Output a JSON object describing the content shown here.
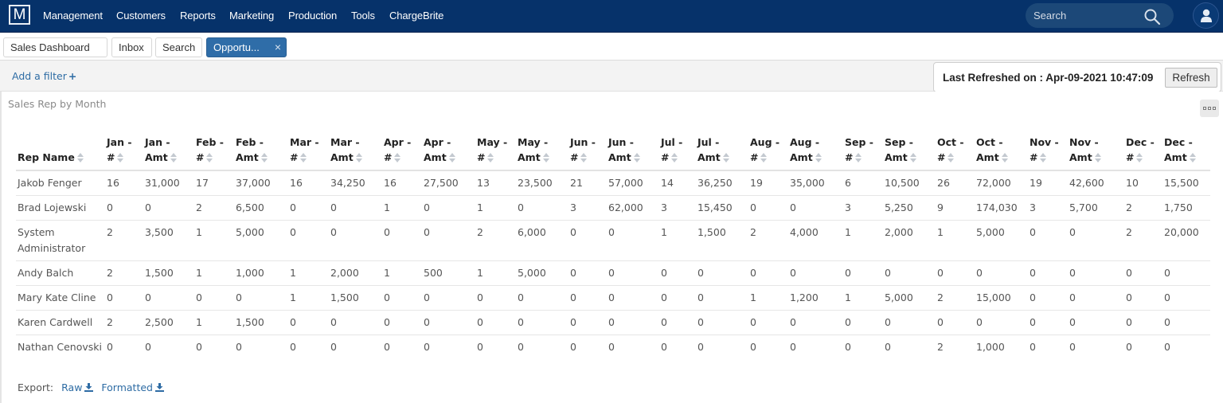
{
  "topnav": {
    "logo": "M",
    "items": [
      "Management",
      "Customers",
      "Reports",
      "Marketing",
      "Production",
      "Tools",
      "ChargeBrite"
    ],
    "search_placeholder": "Search"
  },
  "tabs": [
    {
      "label": "Sales Dashboard",
      "has_dropdown": true
    },
    {
      "label": "Inbox"
    },
    {
      "label": "Search"
    },
    {
      "label": "Opportu...",
      "active": true,
      "closable": true,
      "close_glyph": "×"
    }
  ],
  "filterbar": {
    "add_filter_label": "Add a filter",
    "add_filter_icon": "+",
    "last_refreshed_label": "Last Refreshed on : Apr-09-2021 10:47:09",
    "refresh_button": "Refresh"
  },
  "panel": {
    "title": "Sales Rep by Month",
    "table": {
      "columns": [
        {
          "line1": "",
          "line2": "Rep Name"
        },
        {
          "line1": "Jan -",
          "line2": "#"
        },
        {
          "line1": "Jan -",
          "line2": "Amt"
        },
        {
          "line1": "Feb -",
          "line2": "#"
        },
        {
          "line1": "Feb -",
          "line2": "Amt"
        },
        {
          "line1": "Mar -",
          "line2": "#"
        },
        {
          "line1": "Mar -",
          "line2": "Amt"
        },
        {
          "line1": "Apr -",
          "line2": "#"
        },
        {
          "line1": "Apr -",
          "line2": "Amt"
        },
        {
          "line1": "May -",
          "line2": "#"
        },
        {
          "line1": "May -",
          "line2": "Amt"
        },
        {
          "line1": "Jun -",
          "line2": "#"
        },
        {
          "line1": "Jun -",
          "line2": "Amt"
        },
        {
          "line1": "Jul -",
          "line2": "#"
        },
        {
          "line1": "Jul -",
          "line2": "Amt"
        },
        {
          "line1": "Aug -",
          "line2": "#"
        },
        {
          "line1": "Aug -",
          "line2": "Amt"
        },
        {
          "line1": "Sep -",
          "line2": "#"
        },
        {
          "line1": "Sep -",
          "line2": "Amt"
        },
        {
          "line1": "Oct -",
          "line2": "#"
        },
        {
          "line1": "Oct -",
          "line2": "Amt"
        },
        {
          "line1": "Nov -",
          "line2": "#"
        },
        {
          "line1": "Nov -",
          "line2": "Amt"
        },
        {
          "line1": "Dec -",
          "line2": "#"
        },
        {
          "line1": "Dec -",
          "line2": "Amt"
        }
      ],
      "rows": [
        [
          "Jakob Fenger",
          "16",
          "31,000",
          "17",
          "37,000",
          "16",
          "34,250",
          "16",
          "27,500",
          "13",
          "23,500",
          "21",
          "57,000",
          "14",
          "36,250",
          "19",
          "35,000",
          "6",
          "10,500",
          "26",
          "72,000",
          "19",
          "42,600",
          "10",
          "15,500"
        ],
        [
          "Brad Lojewski",
          "0",
          "0",
          "2",
          "6,500",
          "0",
          "0",
          "1",
          "0",
          "1",
          "0",
          "3",
          "62,000",
          "3",
          "15,450",
          "0",
          "0",
          "3",
          "5,250",
          "9",
          "174,030",
          "3",
          "5,700",
          "2",
          "1,750"
        ],
        [
          "System Administrator",
          "2",
          "3,500",
          "1",
          "5,000",
          "0",
          "0",
          "0",
          "0",
          "2",
          "6,000",
          "0",
          "0",
          "1",
          "1,500",
          "2",
          "4,000",
          "1",
          "2,000",
          "1",
          "5,000",
          "0",
          "0",
          "2",
          "20,000"
        ],
        [
          "Andy Balch",
          "2",
          "1,500",
          "1",
          "1,000",
          "1",
          "2,000",
          "1",
          "500",
          "1",
          "5,000",
          "0",
          "0",
          "0",
          "0",
          "0",
          "0",
          "0",
          "0",
          "0",
          "0",
          "0",
          "0",
          "0",
          "0"
        ],
        [
          "Mary Kate Cline",
          "0",
          "0",
          "0",
          "0",
          "1",
          "1,500",
          "0",
          "0",
          "0",
          "0",
          "0",
          "0",
          "0",
          "0",
          "1",
          "1,200",
          "1",
          "5,000",
          "2",
          "15,000",
          "0",
          "0",
          "0",
          "0"
        ],
        [
          "Karen Cardwell",
          "2",
          "2,500",
          "1",
          "1,500",
          "0",
          "0",
          "0",
          "0",
          "0",
          "0",
          "0",
          "0",
          "0",
          "0",
          "0",
          "0",
          "0",
          "0",
          "0",
          "0",
          "0",
          "0",
          "0",
          "0"
        ],
        [
          "Nathan Cenovski",
          "0",
          "0",
          "0",
          "0",
          "0",
          "0",
          "0",
          "0",
          "0",
          "0",
          "0",
          "0",
          "0",
          "0",
          "0",
          "0",
          "0",
          "0",
          "2",
          "1,000",
          "0",
          "0",
          "0",
          "0"
        ]
      ]
    },
    "export": {
      "label": "Export:",
      "raw": "Raw",
      "formatted": "Formatted"
    }
  },
  "colors": {
    "nav_bg": "#06326a",
    "accent": "#2f6da8",
    "link": "#2e6ca4"
  }
}
